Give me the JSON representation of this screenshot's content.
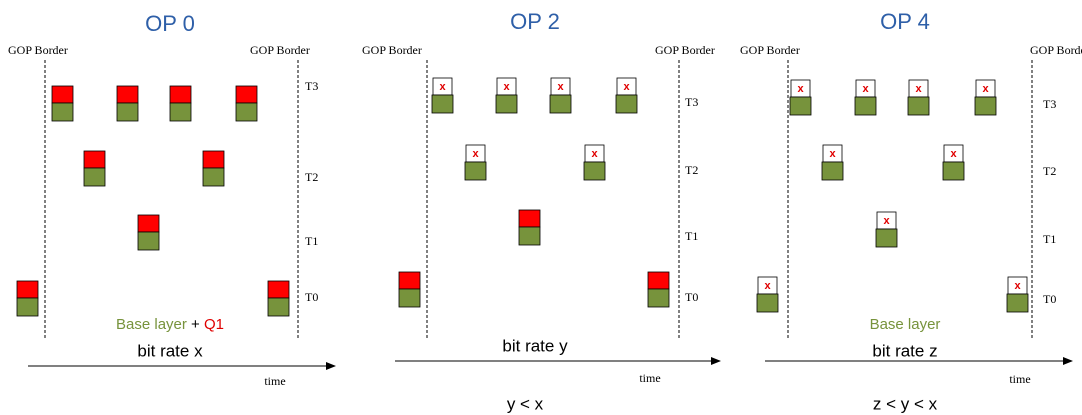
{
  "drop_mark": "x",
  "panels": [
    {
      "title": "OP 0",
      "left_border": "GOP Border",
      "right_border": "GOP Border",
      "layers": [
        "T3",
        "T2",
        "T1",
        "T0"
      ],
      "caption": [
        "Base layer",
        "+",
        "Q1"
      ],
      "bitrate": "bit rate x",
      "time": "time"
    },
    {
      "title": "OP 2",
      "left_border": "GOP Border",
      "right_border": "GOP Border",
      "layers": [
        "T3",
        "T2",
        "T1",
        "T0"
      ],
      "bitrate": "bit rate y",
      "time": "time",
      "comparison": "y < x"
    },
    {
      "title": "OP 4",
      "left_border": "GOP Border",
      "right_border": "GOP Border",
      "layers": [
        "T3",
        "T2",
        "T1",
        "T0"
      ],
      "caption": [
        "Base layer"
      ],
      "bitrate": "bit rate z",
      "time": "time",
      "comparison": "z < y < x"
    }
  ]
}
